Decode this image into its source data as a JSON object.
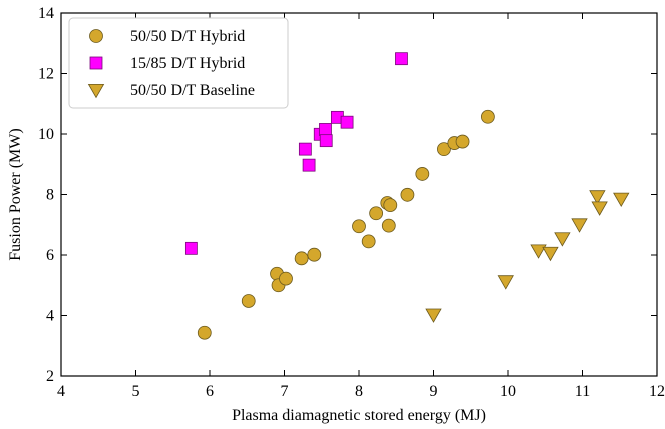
{
  "chart_data": {
    "type": "scatter",
    "title": "",
    "xlabel": "Plasma diamagnetic stored energy (MJ)",
    "ylabel": "Fusion Power (MW)",
    "xlim": [
      4,
      12
    ],
    "ylim": [
      2,
      14
    ],
    "xticks": [
      4,
      5,
      6,
      7,
      8,
      9,
      10,
      11,
      12
    ],
    "yticks": [
      2,
      4,
      6,
      8,
      10,
      12,
      14
    ],
    "grid": false,
    "legend_position": "top-left",
    "series": [
      {
        "name": "50/50 D/T Hybrid",
        "marker": "circle",
        "color": "#d4a72c",
        "edge_color": "#6b5a1f",
        "points": [
          [
            5.93,
            3.43
          ],
          [
            6.52,
            4.48
          ],
          [
            6.9,
            5.38
          ],
          [
            6.92,
            5.0
          ],
          [
            7.02,
            5.22
          ],
          [
            7.23,
            5.89
          ],
          [
            7.4,
            6.01
          ],
          [
            8.0,
            6.95
          ],
          [
            8.13,
            6.45
          ],
          [
            8.23,
            7.38
          ],
          [
            8.38,
            7.72
          ],
          [
            8.4,
            6.97
          ],
          [
            8.42,
            7.65
          ],
          [
            8.65,
            7.99
          ],
          [
            8.85,
            8.68
          ],
          [
            9.14,
            9.5
          ],
          [
            9.28,
            9.7
          ],
          [
            9.39,
            9.75
          ],
          [
            9.73,
            10.57
          ]
        ]
      },
      {
        "name": "15/85 D/T Hybrid",
        "marker": "square",
        "color": "#ff00ff",
        "edge_color": "#7a0a7a",
        "points": [
          [
            5.75,
            6.22
          ],
          [
            7.28,
            9.5
          ],
          [
            7.33,
            8.97
          ],
          [
            7.48,
            9.99
          ],
          [
            7.55,
            10.15
          ],
          [
            7.56,
            9.78
          ],
          [
            7.71,
            10.55
          ],
          [
            7.84,
            10.39
          ],
          [
            8.57,
            12.49
          ]
        ]
      },
      {
        "name": "50/50 D/T Baseline",
        "marker": "triangle-down",
        "color": "#d4a72c",
        "edge_color": "#6b5a1f",
        "points": [
          [
            9.0,
            4.03
          ],
          [
            9.97,
            5.13
          ],
          [
            10.41,
            6.15
          ],
          [
            10.57,
            6.07
          ],
          [
            10.73,
            6.55
          ],
          [
            10.96,
            7.01
          ],
          [
            11.2,
            7.94
          ],
          [
            11.23,
            7.57
          ],
          [
            11.52,
            7.86
          ]
        ]
      }
    ]
  }
}
